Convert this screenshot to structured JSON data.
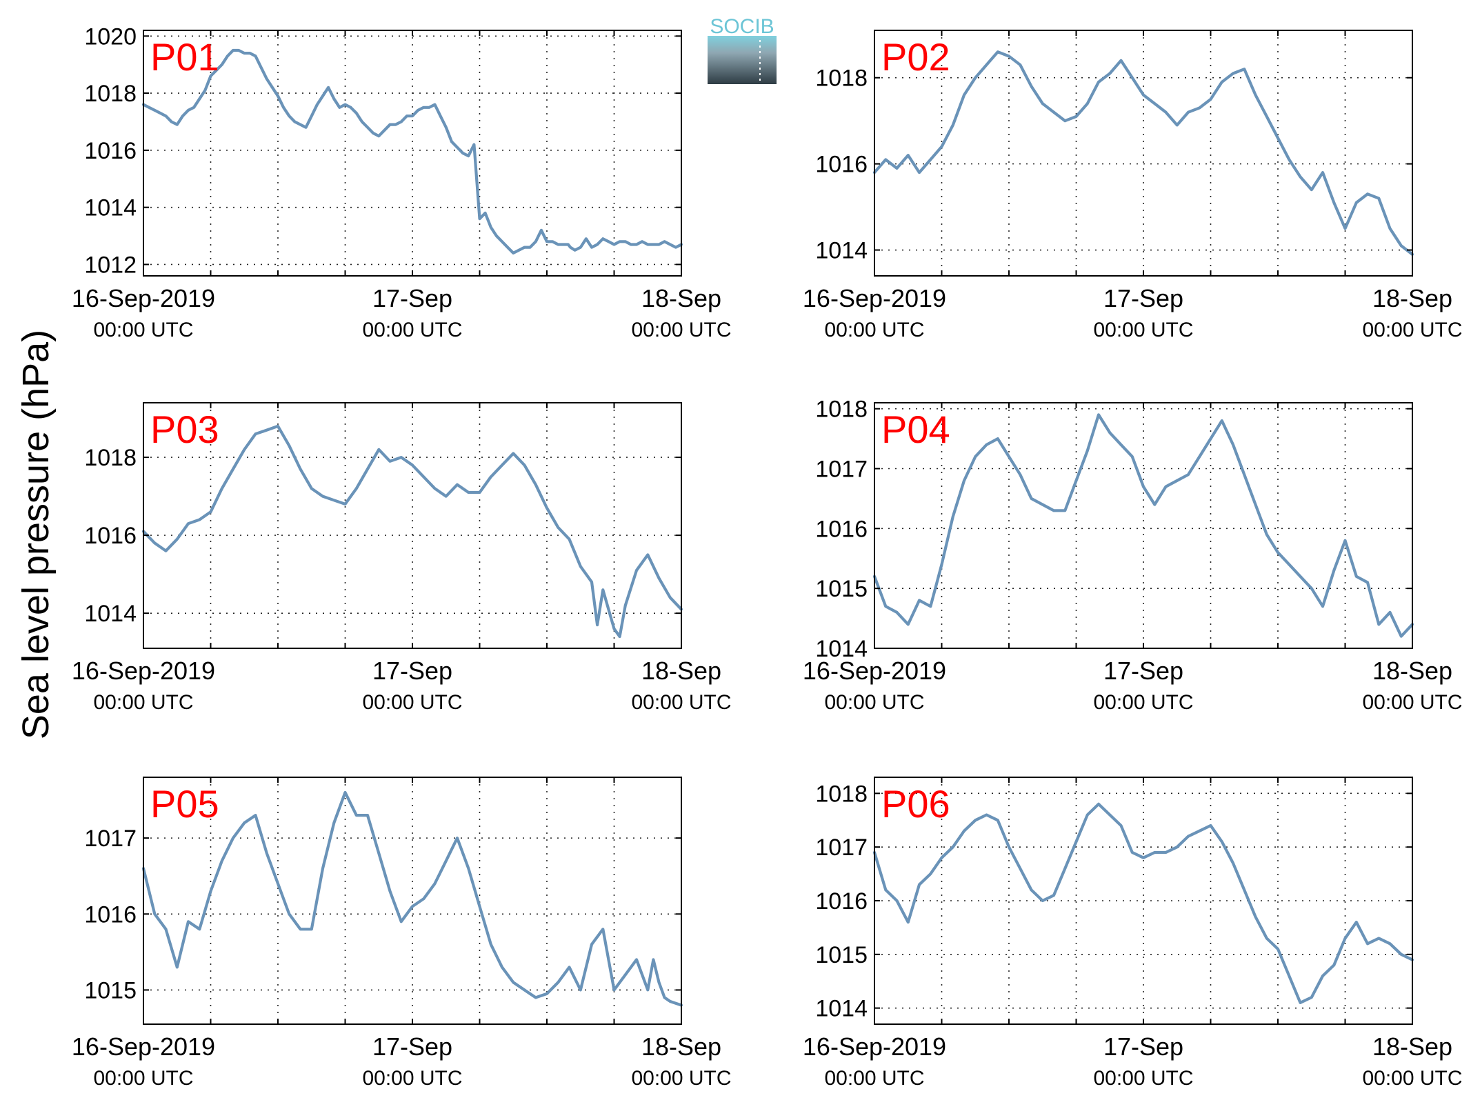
{
  "figure": {
    "ylabel": "Sea level pressure (hPa)",
    "logo": {
      "text": "SOCIB",
      "color_top": "#6cc5d6",
      "color_bottom": "#2e3c44"
    },
    "line_color": "#6a93b8",
    "label_color": "#ff0000"
  },
  "chart_data": [
    {
      "type": "line",
      "name": "P01",
      "title": "P01",
      "xticks": [
        {
          "main": "16-Sep-2019",
          "sub": "00:00 UTC"
        },
        {
          "main": "17-Sep",
          "sub": "00:00 UTC"
        },
        {
          "main": "18-Sep",
          "sub": "00:00 UTC"
        }
      ],
      "xlim": [
        0,
        48
      ],
      "ylim": [
        1011.6,
        1020.2
      ],
      "yticks": [
        1012,
        1014,
        1016,
        1018,
        1020
      ],
      "grid": true,
      "x": [
        0,
        0.5,
        1,
        1.5,
        2,
        2.5,
        3,
        3.5,
        4,
        4.5,
        5,
        5.5,
        6,
        6.5,
        7,
        7.5,
        8,
        8.5,
        9,
        9.5,
        10,
        10.5,
        11,
        11.5,
        12,
        12.5,
        13,
        13.5,
        14,
        14.5,
        15,
        15.5,
        16,
        16.5,
        17,
        17.5,
        18,
        18.5,
        19,
        19.5,
        20,
        20.5,
        21,
        21.5,
        22,
        22.5,
        23,
        23.5,
        24,
        24.5,
        25,
        25.5,
        26,
        26.5,
        27,
        27.5,
        28,
        28.5,
        29,
        29.5,
        30,
        30.5,
        31,
        31.5,
        32,
        32.5,
        33,
        33.5,
        34,
        34.5,
        35,
        35.5,
        36,
        36.5,
        37,
        37.5,
        37.9,
        38.1,
        38.5,
        39,
        39.5,
        40,
        40.5,
        41,
        41.5,
        42,
        42.5,
        43,
        43.5,
        44,
        44.5,
        45,
        45.5,
        46,
        46.5,
        47,
        47.5,
        48
      ],
      "y": [
        1017.6,
        1017.5,
        1017.4,
        1017.3,
        1017.2,
        1017.0,
        1016.9,
        1017.2,
        1017.4,
        1017.5,
        1017.8,
        1018.1,
        1018.6,
        1018.8,
        1019.0,
        1019.3,
        1019.5,
        1019.5,
        1019.4,
        1019.4,
        1019.3,
        1018.9,
        1018.5,
        1018.2,
        1017.9,
        1017.5,
        1017.2,
        1017.0,
        1016.9,
        1016.8,
        1017.2,
        1017.6,
        1017.9,
        1018.2,
        1017.8,
        1017.5,
        1017.6,
        1017.5,
        1017.3,
        1017.0,
        1016.8,
        1016.6,
        1016.5,
        1016.7,
        1016.9,
        1016.9,
        1017.0,
        1017.2,
        1017.2,
        1017.4,
        1017.5,
        1017.5,
        1017.6,
        1017.2,
        1016.8,
        1016.3,
        1016.1,
        1015.9,
        1015.8,
        1016.2,
        1013.6,
        1013.8,
        1013.3,
        1013.0,
        1012.8,
        1012.6,
        1012.4,
        1012.5,
        1012.6,
        1012.6,
        1012.8,
        1013.2,
        1012.8,
        1012.8,
        1012.7,
        1012.7,
        1012.7,
        1012.6,
        1012.5,
        1012.6,
        1012.9,
        1012.6,
        1012.7,
        1012.9,
        1012.8,
        1012.7,
        1012.8,
        1012.8,
        1012.7,
        1012.7,
        1012.8,
        1012.7,
        1012.7,
        1012.7,
        1012.8,
        1012.7,
        1012.6,
        1012.7
      ]
    },
    {
      "type": "line",
      "name": "P02",
      "title": "P02",
      "xticks": [
        {
          "main": "16-Sep-2019",
          "sub": "00:00 UTC"
        },
        {
          "main": "17-Sep",
          "sub": "00:00 UTC"
        },
        {
          "main": "18-Sep",
          "sub": "00:00 UTC"
        }
      ],
      "xlim": [
        0,
        48
      ],
      "ylim": [
        1013.4,
        1019.1
      ],
      "yticks": [
        1014,
        1016,
        1018
      ],
      "grid": true,
      "x": [
        0,
        1,
        2,
        3,
        4,
        5,
        6,
        7,
        8,
        9,
        10,
        11,
        12,
        13,
        14,
        15,
        16,
        17,
        18,
        19,
        20,
        21,
        22,
        23,
        24,
        25,
        26,
        27,
        28,
        29,
        30,
        31,
        32,
        33,
        34,
        35,
        36,
        37,
        38,
        39,
        40,
        41,
        42,
        43,
        44,
        45,
        46,
        47,
        48
      ],
      "y": [
        1015.8,
        1016.1,
        1015.9,
        1016.2,
        1015.8,
        1016.1,
        1016.4,
        1016.9,
        1017.6,
        1018.0,
        1018.3,
        1018.6,
        1018.5,
        1018.3,
        1017.8,
        1017.4,
        1017.2,
        1017.0,
        1017.1,
        1017.4,
        1017.9,
        1018.1,
        1018.4,
        1018.0,
        1017.6,
        1017.4,
        1017.2,
        1016.9,
        1017.2,
        1017.3,
        1017.5,
        1017.9,
        1018.1,
        1018.2,
        1017.6,
        1017.1,
        1016.6,
        1016.1,
        1015.7,
        1015.4,
        1015.8,
        1015.1,
        1014.5,
        1015.1,
        1015.3,
        1015.2,
        1014.5,
        1014.1,
        1013.9
      ]
    },
    {
      "type": "line",
      "name": "P03",
      "title": "P03",
      "xticks": [
        {
          "main": "16-Sep-2019",
          "sub": "00:00 UTC"
        },
        {
          "main": "17-Sep",
          "sub": "00:00 UTC"
        },
        {
          "main": "18-Sep",
          "sub": "00:00 UTC"
        }
      ],
      "xlim": [
        0,
        48
      ],
      "ylim": [
        1013.1,
        1019.4
      ],
      "yticks": [
        1014,
        1016,
        1018
      ],
      "grid": true,
      "x": [
        0,
        1,
        2,
        3,
        4,
        5,
        6,
        7,
        8,
        9,
        10,
        11,
        12,
        13,
        14,
        15,
        16,
        17,
        18,
        19,
        20,
        21,
        22,
        23,
        24,
        25,
        26,
        27,
        28,
        29,
        30,
        31,
        32,
        33,
        34,
        35,
        36,
        37,
        38,
        39,
        40,
        40.5,
        41,
        41.5,
        42,
        42.5,
        43,
        44,
        45,
        46,
        47,
        48
      ],
      "y": [
        1016.1,
        1015.8,
        1015.6,
        1015.9,
        1016.3,
        1016.4,
        1016.6,
        1017.2,
        1017.7,
        1018.2,
        1018.6,
        1018.7,
        1018.8,
        1018.3,
        1017.7,
        1017.2,
        1017.0,
        1016.9,
        1016.8,
        1017.2,
        1017.7,
        1018.2,
        1017.9,
        1018.0,
        1017.8,
        1017.5,
        1017.2,
        1017.0,
        1017.3,
        1017.1,
        1017.1,
        1017.5,
        1017.8,
        1018.1,
        1017.8,
        1017.3,
        1016.7,
        1016.2,
        1015.9,
        1015.2,
        1014.8,
        1013.7,
        1014.6,
        1014.1,
        1013.6,
        1013.4,
        1014.2,
        1015.1,
        1015.5,
        1014.9,
        1014.4,
        1014.1
      ]
    },
    {
      "type": "line",
      "name": "P04",
      "title": "P04",
      "xticks": [
        {
          "main": "16-Sep-2019",
          "sub": "00:00 UTC"
        },
        {
          "main": "17-Sep",
          "sub": "00:00 UTC"
        },
        {
          "main": "18-Sep",
          "sub": "00:00 UTC"
        }
      ],
      "xlim": [
        0,
        48
      ],
      "ylim": [
        1014.0,
        1018.1
      ],
      "yticks": [
        1014,
        1015,
        1016,
        1017,
        1018
      ],
      "grid": true,
      "x": [
        0,
        1,
        2,
        3,
        4,
        5,
        6,
        7,
        8,
        9,
        10,
        11,
        12,
        13,
        14,
        15,
        16,
        17,
        18,
        19,
        20,
        21,
        22,
        23,
        24,
        25,
        26,
        27,
        28,
        29,
        30,
        31,
        32,
        33,
        34,
        35,
        36,
        37,
        38,
        39,
        40,
        41,
        42,
        43,
        44,
        45,
        46,
        47,
        48
      ],
      "y": [
        1015.2,
        1014.7,
        1014.6,
        1014.4,
        1014.8,
        1014.7,
        1015.4,
        1016.2,
        1016.8,
        1017.2,
        1017.4,
        1017.5,
        1017.2,
        1016.9,
        1016.5,
        1016.4,
        1016.3,
        1016.3,
        1016.8,
        1017.3,
        1017.9,
        1017.6,
        1017.4,
        1017.2,
        1016.7,
        1016.4,
        1016.7,
        1016.8,
        1016.9,
        1017.2,
        1017.5,
        1017.8,
        1017.4,
        1016.9,
        1016.4,
        1015.9,
        1015.6,
        1015.4,
        1015.2,
        1015.0,
        1014.7,
        1015.3,
        1015.8,
        1015.2,
        1015.1,
        1014.4,
        1014.6,
        1014.2,
        1014.4
      ]
    },
    {
      "type": "line",
      "name": "P05",
      "title": "P05",
      "xticks": [
        {
          "main": "16-Sep-2019",
          "sub": "00:00 UTC"
        },
        {
          "main": "17-Sep",
          "sub": "00:00 UTC"
        },
        {
          "main": "18-Sep",
          "sub": "00:00 UTC"
        }
      ],
      "xlim": [
        0,
        48
      ],
      "ylim": [
        1014.55,
        1017.8
      ],
      "yticks": [
        1015,
        1016,
        1017
      ],
      "grid": true,
      "x": [
        0,
        1,
        2,
        3,
        4,
        5,
        6,
        7,
        8,
        9,
        10,
        11,
        12,
        13,
        14,
        15,
        16,
        17,
        18,
        19,
        20,
        21,
        22,
        23,
        24,
        25,
        26,
        27,
        28,
        29,
        30,
        31,
        32,
        33,
        34,
        35,
        36,
        37,
        38,
        39,
        40,
        41,
        42,
        43,
        44,
        45,
        45.5,
        46,
        46.5,
        47,
        48
      ],
      "y": [
        1016.6,
        1016.0,
        1015.8,
        1015.3,
        1015.9,
        1015.8,
        1016.3,
        1016.7,
        1017.0,
        1017.2,
        1017.3,
        1016.8,
        1016.4,
        1016.0,
        1015.8,
        1015.8,
        1016.6,
        1017.2,
        1017.6,
        1017.3,
        1017.3,
        1016.8,
        1016.3,
        1015.9,
        1016.1,
        1016.2,
        1016.4,
        1016.7,
        1017.0,
        1016.6,
        1016.1,
        1015.6,
        1015.3,
        1015.1,
        1015.0,
        1014.9,
        1014.95,
        1015.1,
        1015.3,
        1015.0,
        1015.6,
        1015.8,
        1015.0,
        1015.2,
        1015.4,
        1015.0,
        1015.4,
        1015.1,
        1014.9,
        1014.85,
        1014.8
      ]
    },
    {
      "type": "line",
      "name": "P06",
      "title": "P06",
      "xticks": [
        {
          "main": "16-Sep-2019",
          "sub": "00:00 UTC"
        },
        {
          "main": "17-Sep",
          "sub": "00:00 UTC"
        },
        {
          "main": "18-Sep",
          "sub": "00:00 UTC"
        }
      ],
      "xlim": [
        0,
        48
      ],
      "ylim": [
        1013.7,
        1018.3
      ],
      "yticks": [
        1014,
        1015,
        1016,
        1017,
        1018
      ],
      "grid": true,
      "x": [
        0,
        1,
        2,
        3,
        4,
        5,
        6,
        7,
        8,
        9,
        10,
        11,
        12,
        13,
        14,
        15,
        16,
        17,
        18,
        19,
        20,
        21,
        22,
        23,
        24,
        25,
        26,
        27,
        28,
        29,
        30,
        31,
        32,
        33,
        34,
        35,
        36,
        37,
        38,
        39,
        40,
        41,
        42,
        43,
        44,
        45,
        46,
        47,
        48
      ],
      "y": [
        1016.9,
        1016.2,
        1016.0,
        1015.6,
        1016.3,
        1016.5,
        1016.8,
        1017.0,
        1017.3,
        1017.5,
        1017.6,
        1017.5,
        1017.0,
        1016.6,
        1016.2,
        1016.0,
        1016.1,
        1016.6,
        1017.1,
        1017.6,
        1017.8,
        1017.6,
        1017.4,
        1016.9,
        1016.8,
        1016.9,
        1016.9,
        1017.0,
        1017.2,
        1017.3,
        1017.4,
        1017.1,
        1016.7,
        1016.2,
        1015.7,
        1015.3,
        1015.1,
        1014.6,
        1014.1,
        1014.2,
        1014.6,
        1014.8,
        1015.3,
        1015.6,
        1015.2,
        1015.3,
        1015.2,
        1015.0,
        1014.9
      ]
    }
  ]
}
